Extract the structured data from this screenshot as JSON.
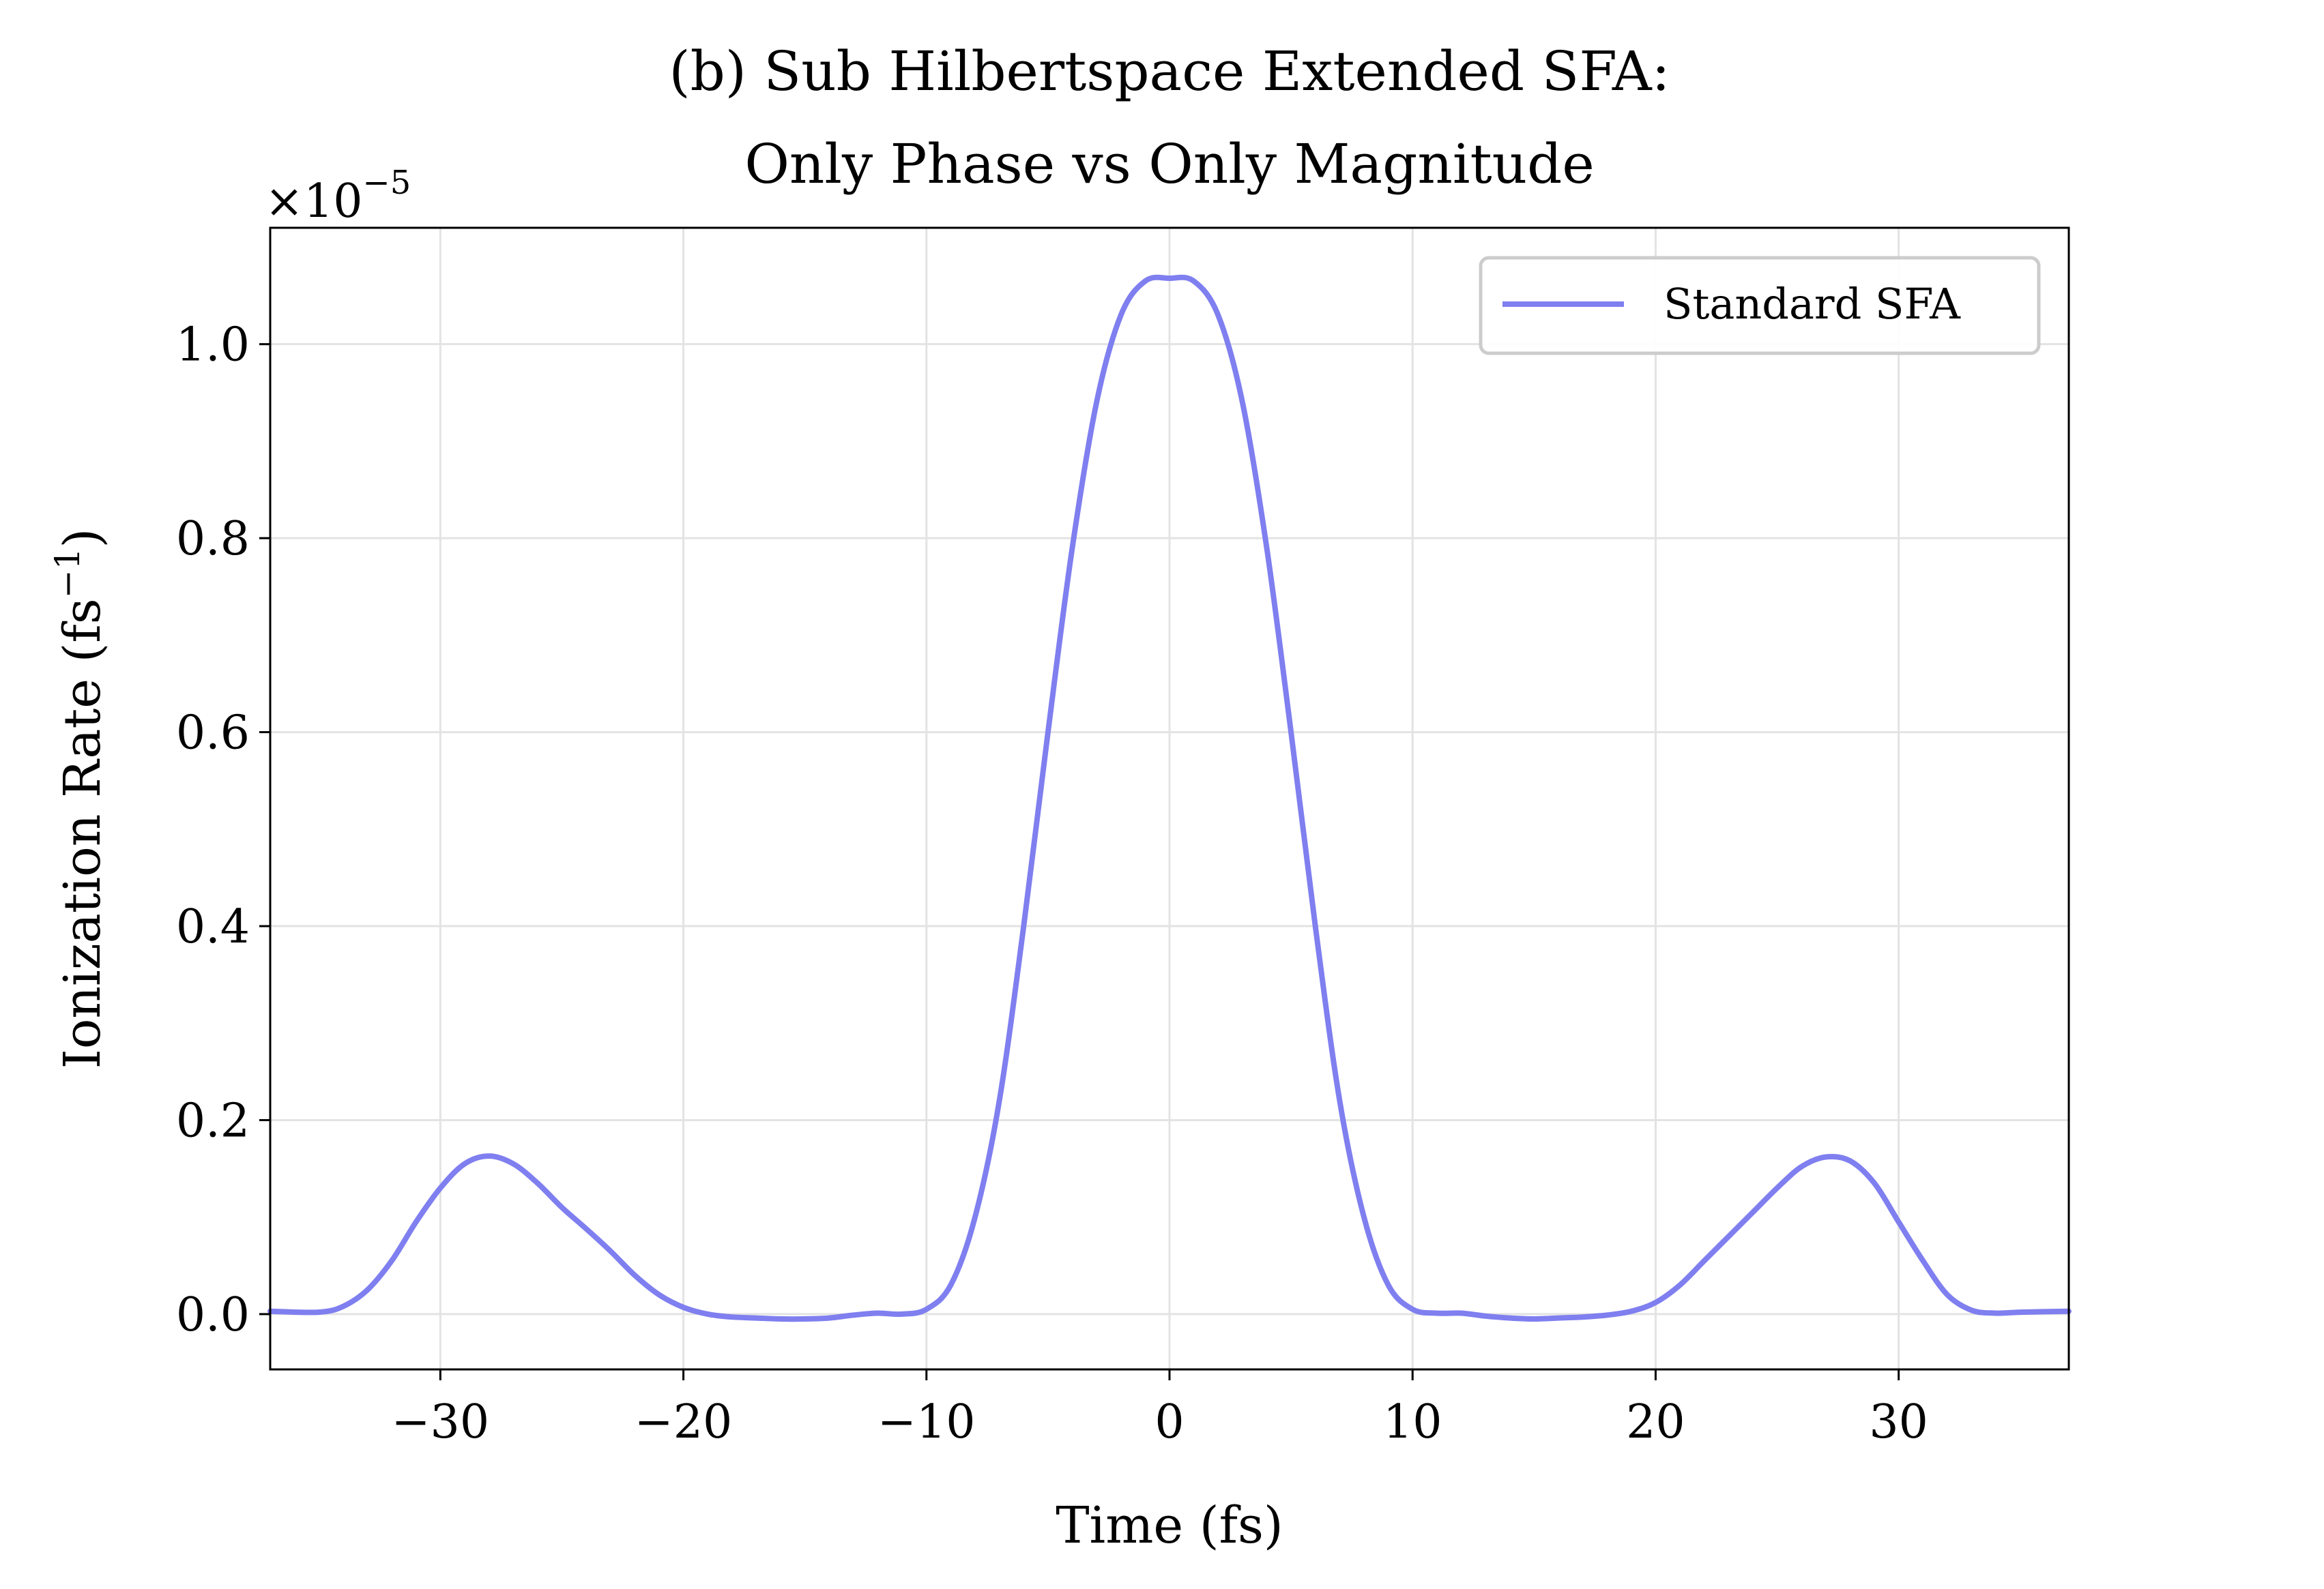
{
  "chart_data": {
    "type": "line",
    "title_line1": "(b) Sub Hilbertspace Extended SFA:",
    "title_line2": "Only Phase vs Only Magnitude",
    "xlabel": "Time (fs)",
    "ylabel": "Ionization Rate (fs",
    "ylabel_sup": "−1",
    "ylabel_close": ")",
    "y_scale_base": "×10",
    "y_scale_exp": "−5",
    "xlim": [
      -37,
      37
    ],
    "ylim": [
      -0.057,
      1.12
    ],
    "xticks": [
      -30,
      -20,
      -10,
      0,
      10,
      20,
      30
    ],
    "xtick_labels": [
      "−30",
      "−20",
      "−10",
      "0",
      "10",
      "20",
      "30"
    ],
    "yticks": [
      0.0,
      0.2,
      0.4,
      0.6,
      0.8,
      1.0
    ],
    "ytick_labels": [
      "0.0",
      "0.2",
      "0.4",
      "0.6",
      "0.8",
      "1.0"
    ],
    "grid": true,
    "legend_position": "top-right",
    "series": [
      {
        "name": "Standard SFA",
        "color": "#7f7ff0",
        "x": [
          -37,
          -35,
          -34,
          -33,
          -32,
          -31,
          -30,
          -29,
          -28,
          -27,
          -26,
          -25,
          -24,
          -23,
          -22,
          -21,
          -20,
          -19,
          -18,
          -17,
          -16,
          -15,
          -14,
          -13,
          -12,
          -11,
          -10,
          -9,
          -8,
          -7,
          -6,
          -5,
          -4,
          -3,
          -2,
          -1,
          0,
          1,
          2,
          3,
          4,
          5,
          6,
          7,
          8,
          9,
          10,
          11,
          12,
          13,
          14,
          15,
          16,
          17,
          18,
          19,
          20,
          21,
          22,
          23,
          24,
          25,
          26,
          27,
          28,
          29,
          30,
          31,
          32,
          33,
          34,
          35,
          37
        ],
        "y": [
          0.003,
          0.002,
          0.008,
          0.025,
          0.055,
          0.095,
          0.13,
          0.155,
          0.163,
          0.155,
          0.135,
          0.11,
          0.088,
          0.065,
          0.04,
          0.02,
          0.007,
          0.0,
          -0.003,
          -0.004,
          -0.005,
          -0.005,
          -0.004,
          -0.001,
          0.001,
          0.0,
          0.005,
          0.03,
          0.1,
          0.22,
          0.4,
          0.6,
          0.79,
          0.94,
          1.03,
          1.065,
          1.068,
          1.065,
          1.03,
          0.94,
          0.79,
          0.6,
          0.4,
          0.22,
          0.1,
          0.03,
          0.005,
          0.001,
          0.001,
          -0.002,
          -0.004,
          -0.005,
          -0.004,
          -0.003,
          -0.001,
          0.003,
          0.012,
          0.03,
          0.055,
          0.08,
          0.105,
          0.13,
          0.152,
          0.162,
          0.158,
          0.135,
          0.095,
          0.055,
          0.02,
          0.004,
          0.001,
          0.002,
          0.003
        ]
      }
    ]
  }
}
